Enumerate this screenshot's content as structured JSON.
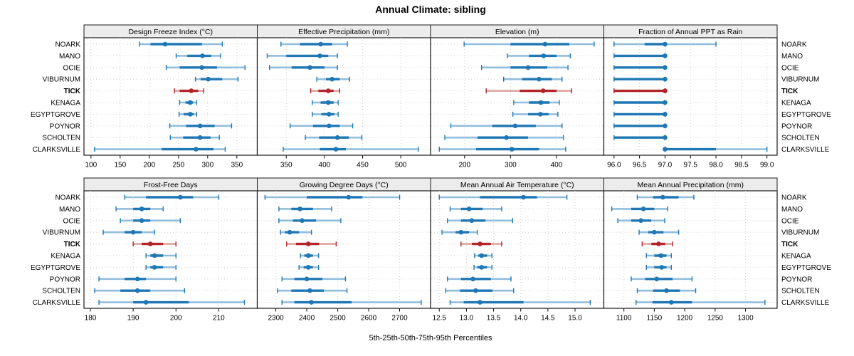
{
  "title": "Annual Climate: sibling",
  "xlabel": "5th-25th-50th-75th-95th Percentiles",
  "colors": {
    "series_blue": "#1f77b4",
    "series_blue_light": "#92bedd",
    "highlight_red": "#b22428",
    "highlight_red_light": "#dda3a1",
    "grid": "#cfcfcf",
    "strip_bg": "#ececec",
    "panel_border": "#1c1c1c",
    "text": "#000000"
  },
  "chart_data": {
    "type": "scatter",
    "subtype": "lattice-percentile-dotplot",
    "title": "Annual Climate: sibling",
    "xlabel": "5th-25th-50th-75th-95th Percentiles",
    "percentiles": [
      5,
      25,
      50,
      75,
      95
    ],
    "legend": "none",
    "grid": "dotted",
    "layout": {
      "rows": 2,
      "cols": 4
    },
    "sites": [
      "NOARK",
      "MANO",
      "OCIE",
      "VIBURNUM",
      "TICK",
      "KENAGA",
      "EGYPTGROVE",
      "POYNOR",
      "SCHOLTEN",
      "CLARKSVILLE"
    ],
    "highlight_site": "TICK",
    "panels": [
      {
        "title": "Design Freeze Index (°C)",
        "xlim": [
          88,
          385
        ],
        "tick_values": [
          100,
          150,
          200,
          250,
          300,
          350
        ],
        "tick_labels": [
          "100",
          "150",
          "200",
          "250",
          "300",
          "350"
        ],
        "values": {
          "NOARK": [
            183,
            202,
            227,
            290,
            325
          ],
          "MANO": [
            246,
            265,
            291,
            306,
            322
          ],
          "OCIE": [
            229,
            252,
            290,
            316,
            364
          ],
          "VIBURNUM": [
            279,
            288,
            301,
            325,
            352
          ],
          "TICK": [
            243,
            252,
            272,
            284,
            293
          ],
          "KENAGA": [
            252,
            262,
            270,
            275,
            281
          ],
          "EGYPTGROVE": [
            251,
            259,
            270,
            276,
            281
          ],
          "POYNOR": [
            235,
            263,
            287,
            312,
            341
          ],
          "SCHOLTEN": [
            236,
            258,
            287,
            305,
            320
          ],
          "CLARKSVILLE": [
            106,
            221,
            280,
            310,
            330
          ]
        }
      },
      {
        "title": "Effective Precipitation (mm)",
        "xlim": [
          312,
          539
        ],
        "tick_values": [
          350,
          400,
          450,
          500
        ],
        "tick_labels": [
          "350",
          "400",
          "450",
          "500"
        ],
        "values": {
          "NOARK": [
            343,
            368,
            395,
            410,
            430
          ],
          "MANO": [
            325,
            350,
            394,
            405,
            417
          ],
          "OCIE": [
            328,
            357,
            381,
            400,
            417
          ],
          "VIBURNUM": [
            390,
            402,
            410,
            420,
            433
          ],
          "TICK": [
            382,
            392,
            405,
            412,
            420
          ],
          "KENAGA": [
            384,
            395,
            405,
            412,
            418
          ],
          "EGYPTGROVE": [
            384,
            396,
            406,
            413,
            418
          ],
          "POYNOR": [
            355,
            385,
            406,
            420,
            437
          ],
          "SCHOLTEN": [
            375,
            393,
            417,
            432,
            449
          ],
          "CLARKSVILLE": [
            346,
            394,
            415,
            428,
            523
          ]
        }
      },
      {
        "title": "Elevation (m)",
        "xlim": [
          126,
          503
        ],
        "tick_values": [
          200,
          300,
          400
        ],
        "tick_labels": [
          "200",
          "300",
          "400"
        ],
        "values": {
          "NOARK": [
            199,
            300,
            375,
            428,
            482
          ],
          "MANO": [
            293,
            340,
            372,
            400,
            430
          ],
          "OCIE": [
            237,
            300,
            338,
            380,
            425
          ],
          "VIBURNUM": [
            285,
            325,
            362,
            390,
            412
          ],
          "TICK": [
            247,
            320,
            371,
            400,
            433
          ],
          "KENAGA": [
            307,
            340,
            366,
            385,
            406
          ],
          "EGYPTGROVE": [
            305,
            338,
            365,
            383,
            403
          ],
          "POYNOR": [
            170,
            260,
            310,
            355,
            412
          ],
          "SCHOLTEN": [
            157,
            228,
            291,
            338,
            415
          ],
          "CLARKSVILLE": [
            145,
            225,
            303,
            362,
            420
          ]
        }
      },
      {
        "title": "Fraction of Annual PPT as Rain",
        "xlim": [
          95.8,
          99.2
        ],
        "tick_values": [
          96.0,
          96.5,
          97.0,
          97.5,
          98.0,
          98.5,
          99.0
        ],
        "tick_labels": [
          "96.0",
          "96.5",
          "97.0",
          "97.5",
          "98.0",
          "98.5",
          "99.0"
        ],
        "values": {
          "NOARK": [
            96,
            96.6,
            97,
            97,
            98
          ],
          "MANO": [
            96,
            96,
            97,
            97,
            97
          ],
          "OCIE": [
            96,
            96,
            97,
            97,
            97
          ],
          "VIBURNUM": [
            96,
            96,
            97,
            97,
            97
          ],
          "TICK": [
            96,
            96,
            97,
            97,
            97
          ],
          "KENAGA": [
            96,
            96,
            97,
            97,
            97
          ],
          "EGYPTGROVE": [
            96,
            96,
            97,
            97,
            97
          ],
          "POYNOR": [
            96,
            96,
            97,
            97,
            97
          ],
          "SCHOLTEN": [
            96,
            96,
            97,
            97,
            97
          ],
          "CLARKSVILLE": [
            97,
            97,
            97,
            98,
            99
          ]
        }
      },
      {
        "title": "Frost-Free Days",
        "xlim": [
          178.5,
          219
        ],
        "tick_values": [
          180,
          190,
          200,
          210
        ],
        "tick_labels": [
          "180",
          "190",
          "200",
          "210"
        ],
        "values": {
          "NOARK": [
            188,
            193,
            201,
            204,
            210
          ],
          "MANO": [
            186,
            190,
            192,
            194,
            197
          ],
          "OCIE": [
            187,
            190,
            192,
            194,
            201
          ],
          "VIBURNUM": [
            183,
            188,
            190,
            192,
            195
          ],
          "TICK": [
            190,
            192,
            194,
            197,
            200
          ],
          "KENAGA": [
            193,
            194,
            195,
            197,
            200
          ],
          "EGYPTGROVE": [
            193,
            194,
            195,
            197,
            200
          ],
          "POYNOR": [
            182,
            188,
            191,
            193,
            200
          ],
          "SCHOLTEN": [
            181,
            187,
            191,
            194,
            202
          ],
          "CLARKSVILLE": [
            182,
            190,
            193,
            203,
            216
          ]
        }
      },
      {
        "title": "Growing Degree Days (°C)",
        "xlim": [
          2240,
          2800
        ],
        "tick_values": [
          2300,
          2400,
          2500,
          2600,
          2700
        ],
        "tick_labels": [
          "2300",
          "2400",
          "2500",
          "2600",
          "2700"
        ],
        "values": {
          "NOARK": [
            2265,
            2400,
            2535,
            2580,
            2700
          ],
          "MANO": [
            2310,
            2350,
            2378,
            2420,
            2480
          ],
          "OCIE": [
            2310,
            2355,
            2385,
            2430,
            2510
          ],
          "VIBURNUM": [
            2315,
            2330,
            2345,
            2375,
            2415
          ],
          "TICK": [
            2335,
            2365,
            2405,
            2440,
            2495
          ],
          "KENAGA": [
            2380,
            2392,
            2405,
            2420,
            2438
          ],
          "EGYPTGROVE": [
            2375,
            2390,
            2405,
            2420,
            2438
          ],
          "POYNOR": [
            2320,
            2360,
            2400,
            2450,
            2525
          ],
          "SCHOLTEN": [
            2305,
            2350,
            2410,
            2455,
            2530
          ],
          "CLARKSVILLE": [
            2320,
            2360,
            2415,
            2545,
            2770
          ]
        }
      },
      {
        "title": "Mean Annual Air Temperature (°C)",
        "xlim": [
          12.34,
          15.53
        ],
        "tick_values": [
          12.5,
          13.0,
          13.5,
          14.0,
          14.5,
          15.0
        ],
        "tick_labels": [
          "12.5",
          "13.0",
          "13.5",
          "14.0",
          "14.5",
          "15.0"
        ],
        "values": {
          "NOARK": [
            12.5,
            13.25,
            14.05,
            14.3,
            14.85
          ],
          "MANO": [
            12.7,
            12.9,
            13.05,
            13.3,
            13.65
          ],
          "OCIE": [
            12.65,
            12.9,
            13.1,
            13.35,
            13.85
          ],
          "VIBURNUM": [
            12.55,
            12.8,
            12.9,
            13.05,
            13.2
          ],
          "TICK": [
            12.9,
            13.1,
            13.25,
            13.45,
            13.65
          ],
          "KENAGA": [
            13.15,
            13.22,
            13.28,
            13.38,
            13.47
          ],
          "EGYPTGROVE": [
            13.14,
            13.2,
            13.28,
            13.38,
            13.47
          ],
          "POYNOR": [
            12.65,
            12.9,
            13.12,
            13.45,
            13.82
          ],
          "SCHOLTEN": [
            12.62,
            12.88,
            13.17,
            13.48,
            13.87
          ],
          "CLARKSVILLE": [
            12.7,
            12.95,
            13.25,
            14.05,
            15.28
          ]
        }
      },
      {
        "title": "Mean Annual Precipitation (mm)",
        "xlim": [
          1067,
          1352
        ],
        "tick_values": [
          1100,
          1150,
          1200,
          1250,
          1300
        ],
        "tick_labels": [
          "1100",
          "1150",
          "1200",
          "1250",
          "1300"
        ],
        "values": {
          "NOARK": [
            1122,
            1148,
            1164,
            1190,
            1215
          ],
          "MANO": [
            1080,
            1112,
            1132,
            1150,
            1172
          ],
          "OCIE": [
            1090,
            1112,
            1128,
            1145,
            1167
          ],
          "VIBURNUM": [
            1125,
            1140,
            1150,
            1165,
            1190
          ],
          "TICK": [
            1130,
            1145,
            1157,
            1168,
            1180
          ],
          "KENAGA": [
            1137,
            1150,
            1161,
            1170,
            1178
          ],
          "EGYPTGROVE": [
            1137,
            1150,
            1162,
            1170,
            1178
          ],
          "POYNOR": [
            1112,
            1135,
            1154,
            1180,
            1212
          ],
          "SCHOLTEN": [
            1122,
            1148,
            1170,
            1192,
            1218
          ],
          "CLARKSVILLE": [
            1120,
            1147,
            1178,
            1212,
            1332
          ]
        }
      }
    ]
  }
}
